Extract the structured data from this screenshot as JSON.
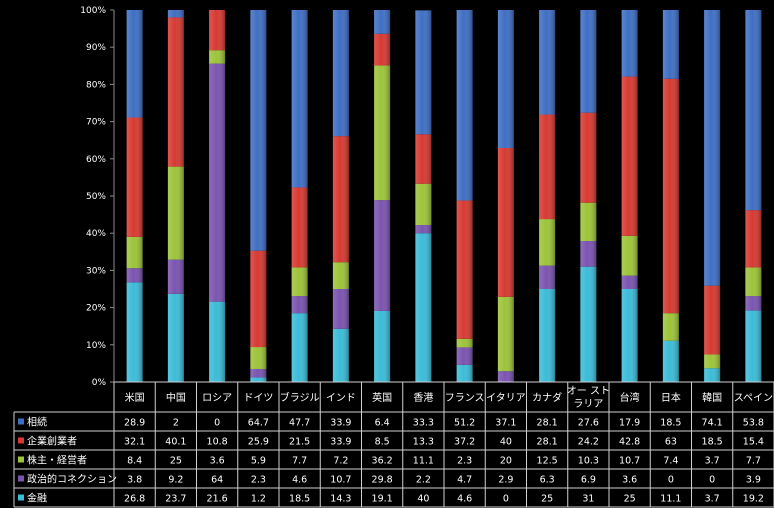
{
  "chart_data": {
    "type": "bar",
    "stacked": "percent",
    "categories": [
      "米国",
      "中国",
      "ロシア",
      "ドイツ",
      "ブラジル",
      "インド",
      "英国",
      "香港",
      "フランス",
      "イタリア",
      "カナダ",
      "オーストラリア",
      "台湾",
      "日本",
      "韓国",
      "スペイン"
    ],
    "category_lines": [
      [
        "米国"
      ],
      [
        "中国"
      ],
      [
        "ロシア"
      ],
      [
        "ドイツ"
      ],
      [
        "ブラジル"
      ],
      [
        "インド"
      ],
      [
        "英国"
      ],
      [
        "香港"
      ],
      [
        "フランス"
      ],
      [
        "イタリア"
      ],
      [
        "カナダ"
      ],
      [
        "オー スト",
        "ラリア"
      ],
      [
        "台湾"
      ],
      [
        "日本"
      ],
      [
        "韓国"
      ],
      [
        "スペイン"
      ]
    ],
    "y_ticks": [
      "0%",
      "10%",
      "20%",
      "30%",
      "40%",
      "50%",
      "60%",
      "70%",
      "80%",
      "90%",
      "100%"
    ],
    "ylim": [
      0,
      100
    ],
    "legend_placement": "data-table",
    "grid": false,
    "series": [
      {
        "name": "相続",
        "color": "#3f6fc4",
        "values": [
          "28.9",
          "2",
          "0",
          "64.7",
          "47.7",
          "33.9",
          "6.4",
          "33.3",
          "51.2",
          "37.1",
          "28.1",
          "27.6",
          "17.9",
          "18.5",
          "74.1",
          "53.8"
        ]
      },
      {
        "name": "企業創業者",
        "color": "#d73a32",
        "values": [
          "32.1",
          "40.1",
          "10.8",
          "25.9",
          "21.5",
          "33.9",
          "8.5",
          "13.3",
          "37.2",
          "40",
          "28.1",
          "24.2",
          "42.8",
          "63",
          "18.5",
          "15.4"
        ]
      },
      {
        "name": "株主・経営者",
        "color": "#9dc43a",
        "values": [
          "8.4",
          "25",
          "3.6",
          "5.9",
          "7.7",
          "7.2",
          "36.2",
          "11.1",
          "2.3",
          "20",
          "12.5",
          "10.3",
          "10.7",
          "7.4",
          "3.7",
          "7.7"
        ]
      },
      {
        "name": "政治的コネクション",
        "color": "#7b54b0",
        "values": [
          "3.8",
          "9.2",
          "64",
          "2.3",
          "4.6",
          "10.7",
          "29.8",
          "2.2",
          "4.7",
          "2.9",
          "6.3",
          "6.9",
          "3.6",
          "0",
          "0",
          "3.9"
        ]
      },
      {
        "name": "金融",
        "color": "#3cbcd8",
        "values": [
          "26.8",
          "23.7",
          "21.6",
          "1.2",
          "18.5",
          "14.3",
          "19.1",
          "40",
          "4.6",
          "0",
          "25",
          "31",
          "25",
          "11.1",
          "3.7",
          "19.2"
        ]
      }
    ]
  }
}
